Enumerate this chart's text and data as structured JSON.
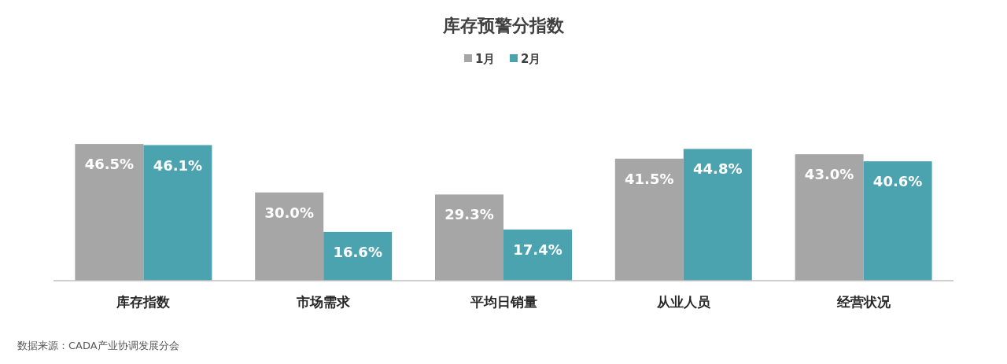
{
  "chart_data": {
    "type": "bar",
    "title": "库存预警分指数",
    "categories": [
      "库存指数",
      "市场需求",
      "平均日销量",
      "从业人员",
      "经营状况"
    ],
    "series": [
      {
        "name": "1月",
        "color": "#a6a6a6",
        "values": [
          46.5,
          30.0,
          29.3,
          41.5,
          43.0
        ],
        "value_labels": [
          "46.5%",
          "30.0%",
          "29.3%",
          "41.5%",
          "43.0%"
        ]
      },
      {
        "name": "2月",
        "color": "#4ba3b0",
        "values": [
          46.1,
          16.6,
          17.4,
          44.8,
          40.6
        ],
        "value_labels": [
          "46.1%",
          "16.6%",
          "17.4%",
          "44.8%",
          "40.6%"
        ]
      }
    ],
    "legend": "top",
    "grid": false,
    "annotations": [
      "数据来源：CADA产业协调发展分会"
    ]
  }
}
